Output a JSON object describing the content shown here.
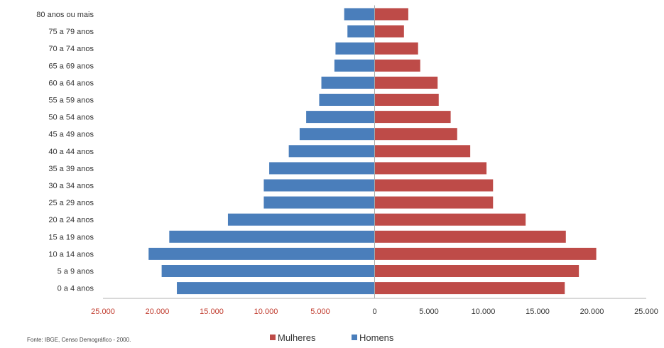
{
  "chart_data": {
    "type": "bar",
    "orientation": "horizontal",
    "layout": "population-pyramid",
    "categories": [
      "80 anos ou mais",
      "75 a 79 anos",
      "70 a 74 anos",
      "65 a 69 anos",
      "60 a 64 anos",
      "55 a 59 anos",
      "50 a 54 anos",
      "45 a 49 anos",
      "40 a 44 anos",
      "35 a 39 anos",
      "30 a 34 anos",
      "25 a 29 anos",
      "20 a 24 anos",
      "15 a 19 anos",
      "10 a 14 anos",
      "5 a 9 anos",
      "0 a 4 anos"
    ],
    "series": [
      {
        "name": "Homens",
        "color": "#4a7ebb",
        "side": "left",
        "values": [
          2800,
          2500,
          3600,
          3700,
          4900,
          5100,
          6300,
          6900,
          7900,
          9700,
          10200,
          10200,
          13500,
          18900,
          20800,
          19600,
          18200
        ]
      },
      {
        "name": "Mulheres",
        "color": "#be4b48",
        "side": "right",
        "values": [
          3100,
          2700,
          4000,
          4200,
          5800,
          5900,
          7000,
          7600,
          8800,
          10300,
          10900,
          10900,
          13900,
          17600,
          20400,
          18800,
          17500
        ]
      }
    ],
    "xlim": [
      -25000,
      25000
    ],
    "x_ticks": [
      -25000,
      -20000,
      -15000,
      -10000,
      -5000,
      0,
      5000,
      10000,
      15000,
      20000,
      25000
    ],
    "x_tick_labels": [
      "25.000",
      "20.000",
      "15.000",
      "10.000",
      "5.000",
      "0",
      "5.000",
      "10.000",
      "15.000",
      "20.000",
      "25.000"
    ],
    "x_tick_colors": {
      "negative": "#c0392b",
      "positive": "#333333"
    },
    "legend": {
      "position": "bottom",
      "entries": [
        "Mulheres",
        "Homens"
      ]
    },
    "grid": false
  },
  "source_note": "Fonte: IBGE, Censo Demográfico - 2000."
}
